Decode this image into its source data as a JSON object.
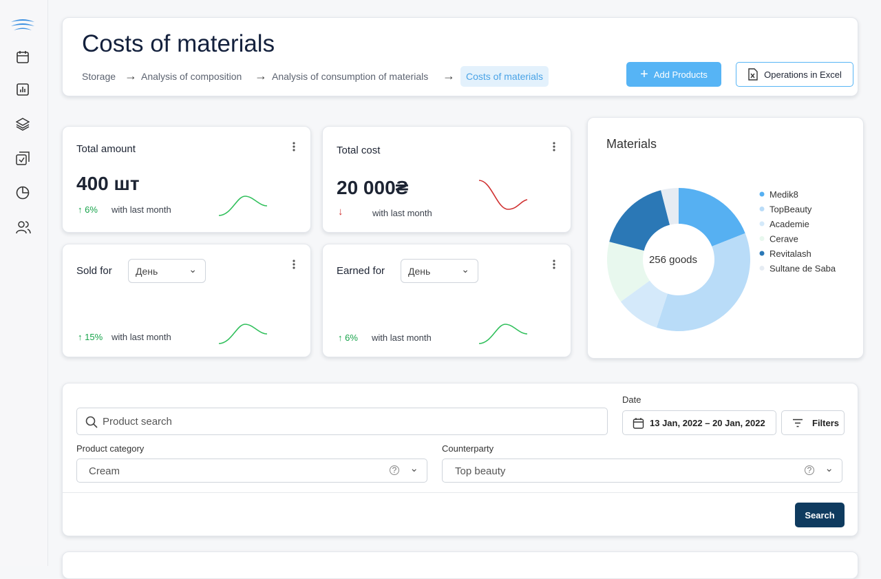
{
  "header": {
    "title": "Costs of materials",
    "breadcrumbs": [
      "Storage",
      "Analysis of composition",
      "Analysis of consumption of materials",
      "Costs of materials"
    ],
    "buttons": [
      "Add Products",
      "Operations in Excel"
    ]
  },
  "stats": [
    {
      "title": "Total amount",
      "value": "400 шт",
      "change": "6%",
      "note": "with last month"
    },
    {
      "title": "Total cost",
      "value": "20 000₴",
      "note": "with last month"
    },
    {
      "title": "Sold for",
      "select": "День",
      "change": "15%",
      "note": "with last month"
    },
    {
      "title": "Earned for",
      "select": "День",
      "change": "6%",
      "note": "with last month"
    }
  ],
  "chart_data": {
    "type": "donut",
    "title": "Materials",
    "center_label": "256 goods",
    "categories": [
      "Medik8",
      "TopBeauty",
      "Academie",
      "Cerave",
      "Revitalash",
      "Sultane de Saba"
    ],
    "values": [
      19,
      36,
      10,
      14,
      17,
      4
    ],
    "colors": [
      "#56b0f2",
      "#b9dcf8",
      "#d4e9fa",
      "#e8f8ee",
      "#2b78b6",
      "#e6ecf3"
    ]
  },
  "filters": {
    "search_placeholder": "Product search",
    "date_label": "Date",
    "date_value": "13 Jan, 2022 – 20 Jan, 2022",
    "filters_button": "Filters",
    "category_label": "Product category",
    "category_value": "Cream",
    "counterparty_label": "Counterparty",
    "counterparty_value": "Top beauty",
    "search_button": "Search"
  }
}
